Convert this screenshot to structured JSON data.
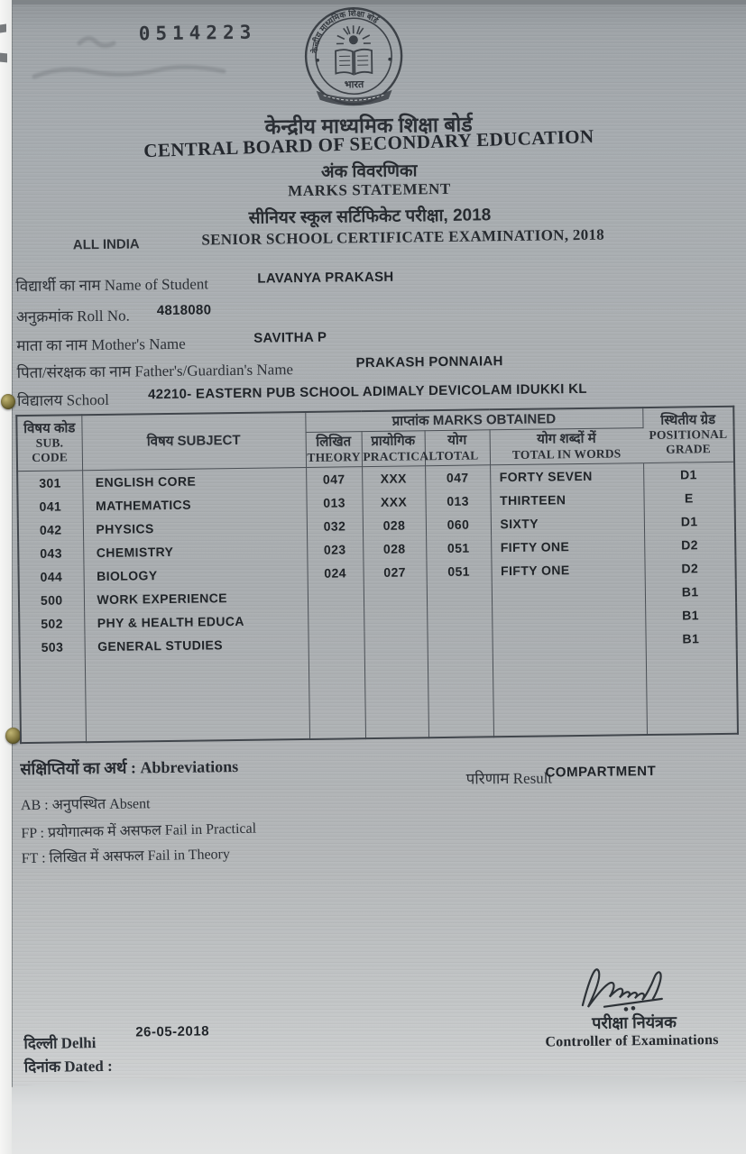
{
  "document_type": "scanned marks statement",
  "serial": "0514223",
  "colors": {
    "paper": "#aaaeb1",
    "ink": "#2a2e33",
    "pin_brass": "#6d652f"
  },
  "logo": {
    "ring_text": "केन्द्रीय माध्यमिक शिक्षा बोर्ड",
    "country": "भारत"
  },
  "header": {
    "board_hindi": "केन्द्रीय माध्यमिक शिक्षा बोर्ड",
    "board_english": "CENTRAL BOARD OF SECONDARY EDUCATION",
    "statement_hindi": "अंक विवरणिका",
    "statement_english": "MARKS STATEMENT",
    "exam_hindi": "सीनियर स्कूल सर्टिफिकेट परीक्षा, 2018",
    "all_india": "ALL INDIA",
    "exam_english": "SENIOR SCHOOL CERTIFICATE EXAMINATION, 2018"
  },
  "student": {
    "name_label": "विद्यार्थी का नाम Name of Student",
    "name": "LAVANYA PRAKASH",
    "roll_label": "अनुक्रमांक Roll No.",
    "roll": "4818080",
    "mother_label": "माता का नाम Mother's Name",
    "mother": "SAVITHA P",
    "father_label": "पिता/संरक्षक का नाम Father's/Guardian's Name",
    "father": "PRAKASH PONNAIAH",
    "school_label": "विद्यालय School",
    "school": "42210- EASTERN PUB SCHOOL ADIMALY DEVICOLAM IDUKKI KL"
  },
  "table": {
    "column_keys": [
      "code",
      "subject",
      "theory",
      "practical",
      "total",
      "words",
      "grade"
    ],
    "headers": {
      "code": [
        "विषय कोड",
        "SUB.",
        "CODE"
      ],
      "subject": [
        "विषय SUBJECT"
      ],
      "marks_obtained": [
        "प्राप्तांक MARKS OBTAINED"
      ],
      "theory": [
        "लिखित",
        "THEORY"
      ],
      "practical": [
        "प्रायोगिक",
        "PRACTICAL"
      ],
      "total": [
        "योग",
        "TOTAL"
      ],
      "words": [
        "योग शब्दों में",
        "TOTAL IN WORDS"
      ],
      "grade": [
        "स्थितीय ग्रेड",
        "POSITIONAL",
        "GRADE"
      ]
    },
    "rows": [
      {
        "code": "301",
        "subject": "ENGLISH CORE",
        "theory": "047",
        "practical": "XXX",
        "total": "047",
        "words": "FORTY SEVEN",
        "grade": "D1"
      },
      {
        "code": "041",
        "subject": "MATHEMATICS",
        "theory": "013",
        "practical": "XXX",
        "total": "013",
        "words": "THIRTEEN",
        "grade": "E"
      },
      {
        "code": "042",
        "subject": "PHYSICS",
        "theory": "032",
        "practical": "028",
        "total": "060",
        "words": "SIXTY",
        "grade": "D1"
      },
      {
        "code": "043",
        "subject": "CHEMISTRY",
        "theory": "023",
        "practical": "028",
        "total": "051",
        "words": "FIFTY ONE",
        "grade": "D2"
      },
      {
        "code": "044",
        "subject": "BIOLOGY",
        "theory": "024",
        "practical": "027",
        "total": "051",
        "words": "FIFTY ONE",
        "grade": "D2"
      },
      {
        "code": "500",
        "subject": "WORK EXPERIENCE",
        "theory": "",
        "practical": "",
        "total": "",
        "words": "",
        "grade": "B1"
      },
      {
        "code": "502",
        "subject": "PHY & HEALTH EDUCA",
        "theory": "",
        "practical": "",
        "total": "",
        "words": "",
        "grade": "B1"
      },
      {
        "code": "503",
        "subject": "GENERAL STUDIES",
        "theory": "",
        "practical": "",
        "total": "",
        "words": "",
        "grade": "B1"
      }
    ]
  },
  "abbreviations": {
    "title": "संक्षिप्तियों का अर्थ : Abbreviations",
    "lines": [
      "AB : अनुपस्थित Absent",
      "FP : प्रयोगात्मक में असफल Fail in Practical",
      "FT : लिखित में असफल Fail in Theory"
    ]
  },
  "result": {
    "label": "परिणाम Result",
    "value": "COMPARTMENT"
  },
  "footer": {
    "place_label": "दिल्ली Delhi",
    "date_value": "26-05-2018",
    "dated_label": "दिनांक Dated :",
    "controller_hindi": "परीक्षा नियंत्रक",
    "controller_english": "Controller of Examinations"
  }
}
